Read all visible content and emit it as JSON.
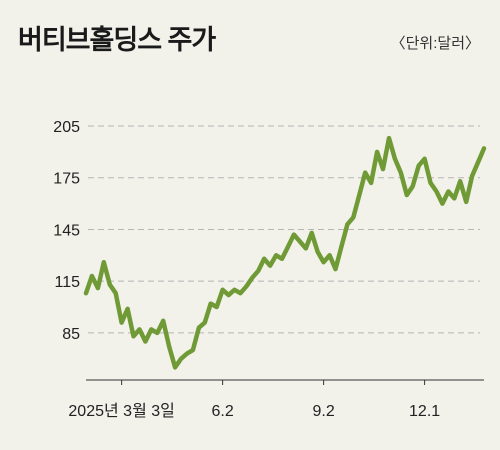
{
  "title": "버티브홀딩스 주가",
  "unit": "〈단위:달러〉",
  "colors": {
    "line": "#6f9a35",
    "grid": "#b5b5b5",
    "axis": "#333333",
    "background": "#f2f1ea"
  },
  "chart_data": {
    "type": "line",
    "title": "버티브홀딩스 주가",
    "unit": "달러",
    "ylim": [
      60,
      205
    ],
    "yticks": [
      85,
      115,
      145,
      175,
      205
    ],
    "grid": "horizontal-dashed",
    "x_ticks": [
      {
        "label": "2025년 3월 3일",
        "index": 6
      },
      {
        "label": "6.2",
        "index": 23
      },
      {
        "label": "9.2",
        "index": 40
      },
      {
        "label": "12.1",
        "index": 57
      }
    ],
    "series": [
      {
        "values": [
          108,
          118,
          111,
          126,
          113,
          108,
          91,
          99,
          83,
          87,
          80,
          87,
          85,
          92,
          77,
          65,
          70,
          73,
          75,
          88,
          91,
          102,
          100,
          110,
          107,
          110,
          108,
          112,
          117,
          121,
          128,
          124,
          130,
          128,
          135,
          142,
          138,
          134,
          143,
          132,
          126,
          130,
          122,
          135,
          148,
          152,
          165,
          178,
          172,
          190,
          180,
          198,
          186,
          178,
          165,
          170,
          182,
          186,
          172,
          167,
          160,
          167,
          163,
          173,
          161,
          176,
          184,
          192
        ]
      }
    ]
  }
}
